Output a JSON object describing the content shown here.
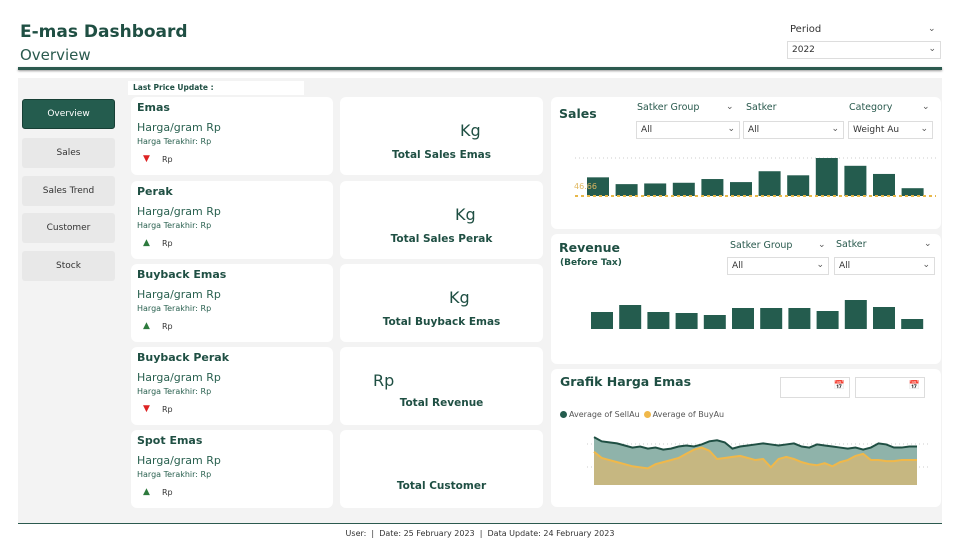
{
  "header": {
    "title": "E-mas Dashboard",
    "subtitle": "Overview",
    "period_label": "Period",
    "period_value": "2022"
  },
  "last_price_update": "Last Price Update :",
  "nav": [
    {
      "label": "Overview",
      "active": true
    },
    {
      "label": "Sales"
    },
    {
      "label": "Sales Trend"
    },
    {
      "label": "Customer"
    },
    {
      "label": "Stock"
    }
  ],
  "prices": [
    {
      "title": "Emas",
      "harga": "Harga/gram Rp",
      "terakhir": "Harga Terakhir: Rp",
      "trend": "down",
      "rp": "Rp"
    },
    {
      "title": "Perak",
      "harga": "Harga/gram Rp",
      "terakhir": "Harga Terakhir: Rp",
      "trend": "up",
      "rp": "Rp"
    },
    {
      "title": "Buyback Emas",
      "harga": "Harga/gram Rp",
      "terakhir": "Harga Terakhir: Rp",
      "trend": "up",
      "rp": "Rp"
    },
    {
      "title": "Buyback Perak",
      "harga": "Harga/gram Rp",
      "terakhir": "Harga Terakhir: Rp",
      "trend": "down",
      "rp": "Rp"
    },
    {
      "title": "Spot Emas",
      "harga": "Harga/gram Rp",
      "terakhir": "Harga Terakhir: Rp",
      "trend": "up",
      "rp": "Rp"
    }
  ],
  "kpis": [
    {
      "unit": "Kg",
      "label": "Total Sales Emas"
    },
    {
      "unit": "Kg",
      "label": "Total Sales Perak"
    },
    {
      "unit": "Kg",
      "label": "Total Buyback Emas"
    },
    {
      "unit": "Rp",
      "label": "Total Revenue"
    },
    {
      "unit": "",
      "label": "Total Customer"
    }
  ],
  "sales": {
    "title": "Sales",
    "filters": [
      {
        "label": "Satker Group",
        "value": "All"
      },
      {
        "label": "Satker",
        "value": "All"
      },
      {
        "label": "Category",
        "value": "Weight Au"
      }
    ],
    "reference_label": "46.66"
  },
  "revenue": {
    "title": "Revenue",
    "subtitle": "(Before Tax)",
    "filters": [
      {
        "label": "Satker Group",
        "value": "All"
      },
      {
        "label": "Satker",
        "value": "All"
      }
    ]
  },
  "grafik": {
    "title": "Grafik Harga Emas",
    "legend": [
      "Average of SellAu",
      "Average of BuyAu"
    ]
  },
  "colors": {
    "primary": "#245c4e",
    "buy": "#f0b84a",
    "down": "#dd2222",
    "up": "#2d7a3d"
  },
  "chart_data": [
    {
      "type": "bar",
      "title": "Sales",
      "values": [
        55,
        35,
        37,
        39,
        50,
        41,
        73,
        61,
        112,
        89,
        65,
        23
      ],
      "reference_line": 46.66
    },
    {
      "type": "bar",
      "title": "Revenue",
      "values": [
        17,
        24,
        17,
        16,
        14,
        21,
        21,
        21,
        18,
        29,
        22,
        10
      ]
    },
    {
      "type": "area",
      "title": "Grafik Harga Emas",
      "series": [
        {
          "name": "Average of SellAu",
          "values": [
            46,
            42,
            41,
            40,
            38,
            36,
            37,
            35,
            36,
            34,
            35,
            37,
            38,
            37,
            39,
            42,
            43,
            41,
            35,
            37,
            38,
            39,
            40,
            39,
            38,
            39,
            40,
            37,
            36,
            39,
            38,
            37,
            36,
            35,
            36,
            34,
            36,
            40,
            39,
            36,
            36,
            37,
            37
          ]
        },
        {
          "name": "Average of BuyAu",
          "values": [
            32,
            26,
            24,
            22,
            20,
            18,
            17,
            16,
            20,
            22,
            24,
            26,
            30,
            34,
            36,
            33,
            25,
            26,
            27,
            28,
            26,
            24,
            25,
            17,
            25,
            27,
            25,
            22,
            20,
            19,
            21,
            18,
            22,
            24,
            28,
            30,
            24,
            24,
            23,
            23,
            24,
            24,
            24
          ]
        }
      ]
    }
  ]
}
